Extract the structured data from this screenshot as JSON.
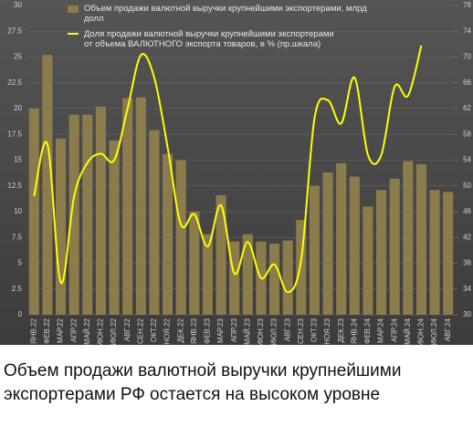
{
  "chart_data": {
    "type": "bar_line",
    "categories": [
      "ЯНВ.22",
      "ФЕВ.22",
      "МАР.22",
      "АПР.22",
      "МАЙ.22",
      "ИЮН.22",
      "ИЮЛ.22",
      "АВГ.22",
      "СЕН.22",
      "ОКТ.22",
      "НОЯ.22",
      "ДЕК.22",
      "ЯНВ.23",
      "ФЕВ.23",
      "МАР.23",
      "АПР.23",
      "МАЙ.23",
      "ИЮН.23",
      "ИЮЛ.23",
      "АВГ.23",
      "СЕН.23",
      "ОКТ.23",
      "НОЯ.23",
      "ДЕК.23",
      "ЯНВ.24",
      "ФЕВ.24",
      "МАР.24",
      "АПР.24",
      "МАЙ.24",
      "ИЮН.24",
      "ИЮЛ.24",
      "АВГ.24"
    ],
    "series": [
      {
        "name": "Объем продажи  валютной выручки крупнейшими экспортерами, млрд долл",
        "color": "#8c7b4b",
        "kind": "bar",
        "values": [
          20,
          25.2,
          17.1,
          19.4,
          19.4,
          20.2,
          16.9,
          21,
          21.1,
          17.9,
          15.6,
          15,
          10,
          7.8,
          11.6,
          7.1,
          7.8,
          7.1,
          6.9,
          7.2,
          9.2,
          12.5,
          13.8,
          14.7,
          13.4,
          10.5,
          12.1,
          13.2,
          14.9,
          14.6,
          12.1,
          11.9
        ]
      },
      {
        "name": "Доля продажи валютной выручки крупнейшими экспортерами от объема ВАЛЮТНОГО экспорта товаров, в % (пр.шкала)",
        "color": "#ffff00",
        "kind": "line",
        "axis": "y2",
        "values": [
          48.4,
          56.5,
          35,
          48.4,
          53.6,
          55,
          54,
          62,
          70.3,
          66.8,
          56,
          44,
          45.6,
          40.6,
          47,
          36.4,
          41.3,
          35.7,
          37.8,
          33.5,
          38.5,
          60.5,
          63.3,
          59.7,
          66.8,
          54.8,
          54.8,
          65.4,
          64,
          71.8,
          null,
          null
        ]
      }
    ],
    "ylim": [
      0,
      30
    ],
    "yticks": [
      0,
      2.5,
      5,
      7.5,
      10,
      12.5,
      15,
      17.5,
      20,
      22.5,
      25,
      27.5,
      30
    ],
    "y2lim": [
      30,
      78
    ],
    "y2ticks": [
      30,
      34,
      38,
      42,
      46,
      50,
      54,
      58,
      62,
      66,
      70,
      74,
      78
    ],
    "grid": true
  },
  "caption": "Объем продажи валютной выручки крупнейшими экспортерами РФ остается на высоком уровне"
}
